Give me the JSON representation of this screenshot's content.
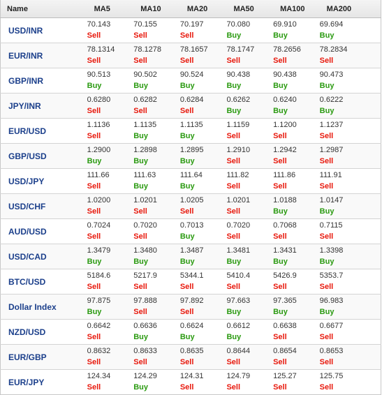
{
  "headers": [
    "Name",
    "MA5",
    "MA10",
    "MA20",
    "MA50",
    "MA100",
    "MA200"
  ],
  "colors": {
    "sell": "#e8180c",
    "buy": "#2a9a10",
    "link": "#1b3f8b"
  },
  "rows": [
    {
      "name": "USD/INR",
      "cells": [
        {
          "value": "70.143",
          "signal": "Sell"
        },
        {
          "value": "70.155",
          "signal": "Sell"
        },
        {
          "value": "70.197",
          "signal": "Sell"
        },
        {
          "value": "70.080",
          "signal": "Buy"
        },
        {
          "value": "69.910",
          "signal": "Buy"
        },
        {
          "value": "69.694",
          "signal": "Buy"
        }
      ]
    },
    {
      "name": "EUR/INR",
      "cells": [
        {
          "value": "78.1314",
          "signal": "Sell"
        },
        {
          "value": "78.1278",
          "signal": "Sell"
        },
        {
          "value": "78.1657",
          "signal": "Sell"
        },
        {
          "value": "78.1747",
          "signal": "Sell"
        },
        {
          "value": "78.2656",
          "signal": "Sell"
        },
        {
          "value": "78.2834",
          "signal": "Sell"
        }
      ]
    },
    {
      "name": "GBP/INR",
      "cells": [
        {
          "value": "90.513",
          "signal": "Buy"
        },
        {
          "value": "90.502",
          "signal": "Buy"
        },
        {
          "value": "90.524",
          "signal": "Buy"
        },
        {
          "value": "90.438",
          "signal": "Buy"
        },
        {
          "value": "90.438",
          "signal": "Buy"
        },
        {
          "value": "90.473",
          "signal": "Buy"
        }
      ]
    },
    {
      "name": "JPY/INR",
      "cells": [
        {
          "value": "0.6280",
          "signal": "Sell"
        },
        {
          "value": "0.6282",
          "signal": "Sell"
        },
        {
          "value": "0.6284",
          "signal": "Sell"
        },
        {
          "value": "0.6262",
          "signal": "Buy"
        },
        {
          "value": "0.6240",
          "signal": "Buy"
        },
        {
          "value": "0.6222",
          "signal": "Buy"
        }
      ]
    },
    {
      "name": "EUR/USD",
      "cells": [
        {
          "value": "1.1136",
          "signal": "Sell"
        },
        {
          "value": "1.1135",
          "signal": "Buy"
        },
        {
          "value": "1.1135",
          "signal": "Buy"
        },
        {
          "value": "1.1159",
          "signal": "Sell"
        },
        {
          "value": "1.1200",
          "signal": "Sell"
        },
        {
          "value": "1.1237",
          "signal": "Sell"
        }
      ]
    },
    {
      "name": "GBP/USD",
      "cells": [
        {
          "value": "1.2900",
          "signal": "Buy"
        },
        {
          "value": "1.2898",
          "signal": "Buy"
        },
        {
          "value": "1.2895",
          "signal": "Buy"
        },
        {
          "value": "1.2910",
          "signal": "Sell"
        },
        {
          "value": "1.2942",
          "signal": "Sell"
        },
        {
          "value": "1.2987",
          "signal": "Sell"
        }
      ]
    },
    {
      "name": "USD/JPY",
      "cells": [
        {
          "value": "111.66",
          "signal": "Sell"
        },
        {
          "value": "111.63",
          "signal": "Buy"
        },
        {
          "value": "111.64",
          "signal": "Buy"
        },
        {
          "value": "111.82",
          "signal": "Sell"
        },
        {
          "value": "111.86",
          "signal": "Sell"
        },
        {
          "value": "111.91",
          "signal": "Sell"
        }
      ]
    },
    {
      "name": "USD/CHF",
      "cells": [
        {
          "value": "1.0200",
          "signal": "Sell"
        },
        {
          "value": "1.0201",
          "signal": "Sell"
        },
        {
          "value": "1.0205",
          "signal": "Sell"
        },
        {
          "value": "1.0201",
          "signal": "Sell"
        },
        {
          "value": "1.0188",
          "signal": "Buy"
        },
        {
          "value": "1.0147",
          "signal": "Buy"
        }
      ]
    },
    {
      "name": "AUD/USD",
      "cells": [
        {
          "value": "0.7024",
          "signal": "Sell"
        },
        {
          "value": "0.7020",
          "signal": "Sell"
        },
        {
          "value": "0.7013",
          "signal": "Buy"
        },
        {
          "value": "0.7020",
          "signal": "Sell"
        },
        {
          "value": "0.7068",
          "signal": "Sell"
        },
        {
          "value": "0.7115",
          "signal": "Sell"
        }
      ]
    },
    {
      "name": "USD/CAD",
      "cells": [
        {
          "value": "1.3479",
          "signal": "Buy"
        },
        {
          "value": "1.3480",
          "signal": "Buy"
        },
        {
          "value": "1.3487",
          "signal": "Buy"
        },
        {
          "value": "1.3481",
          "signal": "Buy"
        },
        {
          "value": "1.3431",
          "signal": "Buy"
        },
        {
          "value": "1.3398",
          "signal": "Buy"
        }
      ]
    },
    {
      "name": "BTC/USD",
      "cells": [
        {
          "value": "5184.6",
          "signal": "Sell"
        },
        {
          "value": "5217.9",
          "signal": "Sell"
        },
        {
          "value": "5344.1",
          "signal": "Sell"
        },
        {
          "value": "5410.4",
          "signal": "Sell"
        },
        {
          "value": "5426.9",
          "signal": "Sell"
        },
        {
          "value": "5353.7",
          "signal": "Sell"
        }
      ]
    },
    {
      "name": "Dollar Index",
      "cells": [
        {
          "value": "97.875",
          "signal": "Buy"
        },
        {
          "value": "97.888",
          "signal": "Sell"
        },
        {
          "value": "97.892",
          "signal": "Sell"
        },
        {
          "value": "97.663",
          "signal": "Buy"
        },
        {
          "value": "97.365",
          "signal": "Buy"
        },
        {
          "value": "96.983",
          "signal": "Buy"
        }
      ]
    },
    {
      "name": "NZD/USD",
      "cells": [
        {
          "value": "0.6642",
          "signal": "Sell"
        },
        {
          "value": "0.6636",
          "signal": "Buy"
        },
        {
          "value": "0.6624",
          "signal": "Buy"
        },
        {
          "value": "0.6612",
          "signal": "Buy"
        },
        {
          "value": "0.6638",
          "signal": "Sell"
        },
        {
          "value": "0.6677",
          "signal": "Sell"
        }
      ]
    },
    {
      "name": "EUR/GBP",
      "cells": [
        {
          "value": "0.8632",
          "signal": "Sell"
        },
        {
          "value": "0.8633",
          "signal": "Sell"
        },
        {
          "value": "0.8635",
          "signal": "Sell"
        },
        {
          "value": "0.8644",
          "signal": "Sell"
        },
        {
          "value": "0.8654",
          "signal": "Sell"
        },
        {
          "value": "0.8653",
          "signal": "Sell"
        }
      ]
    },
    {
      "name": "EUR/JPY",
      "cells": [
        {
          "value": "124.34",
          "signal": "Sell"
        },
        {
          "value": "124.29",
          "signal": "Buy"
        },
        {
          "value": "124.31",
          "signal": "Sell"
        },
        {
          "value": "124.79",
          "signal": "Sell"
        },
        {
          "value": "125.27",
          "signal": "Sell"
        },
        {
          "value": "125.75",
          "signal": "Sell"
        }
      ]
    }
  ]
}
